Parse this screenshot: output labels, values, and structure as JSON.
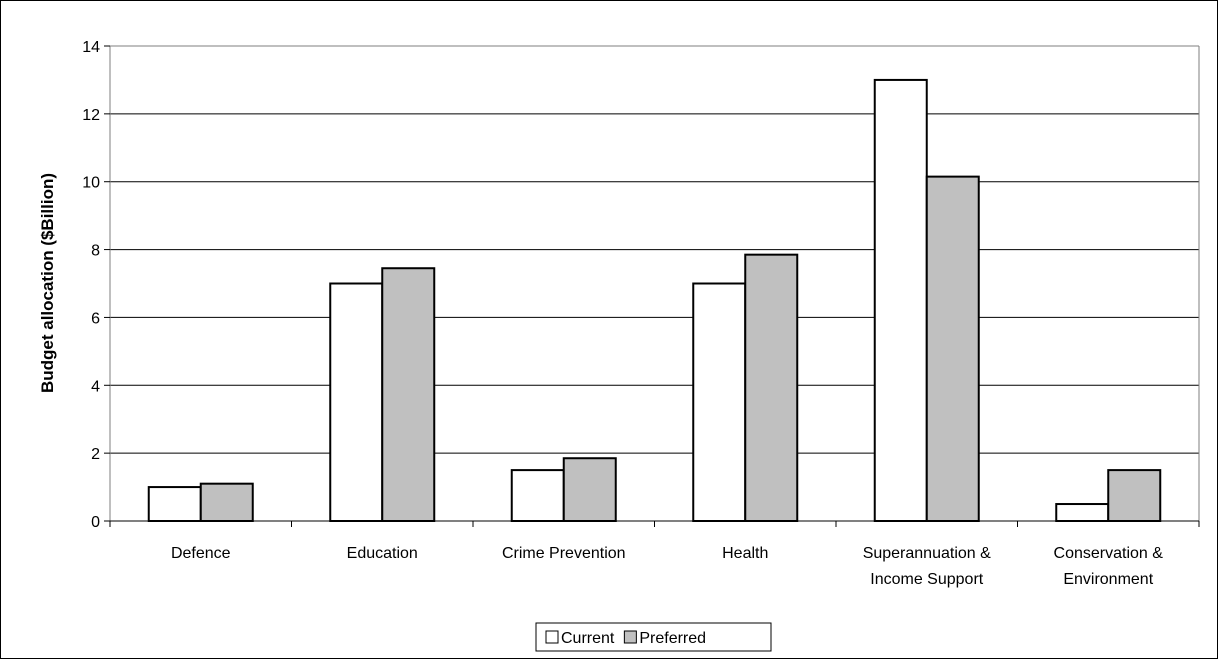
{
  "chart_data": {
    "type": "bar",
    "categories": [
      [
        "Defence"
      ],
      [
        "Education"
      ],
      [
        "Crime Prevention"
      ],
      [
        "Health"
      ],
      [
        "Superannuation &",
        "Income Support"
      ],
      [
        "Conservation &",
        "Environment"
      ]
    ],
    "series": [
      {
        "name": "Current",
        "values": [
          1,
          7,
          1.5,
          7,
          13,
          0.5
        ],
        "color": "#ffffff"
      },
      {
        "name": "Preferred",
        "values": [
          1.1,
          7.45,
          1.85,
          7.85,
          10.15,
          1.5
        ],
        "color": "#c0c0c0"
      }
    ],
    "ylabel": "Budget allocation ($Billion)",
    "xlabel": "",
    "ylim": [
      0,
      14
    ],
    "yticks": [
      0,
      2,
      4,
      6,
      8,
      10,
      12,
      14
    ],
    "grid": true,
    "legend_position": "bottom"
  }
}
